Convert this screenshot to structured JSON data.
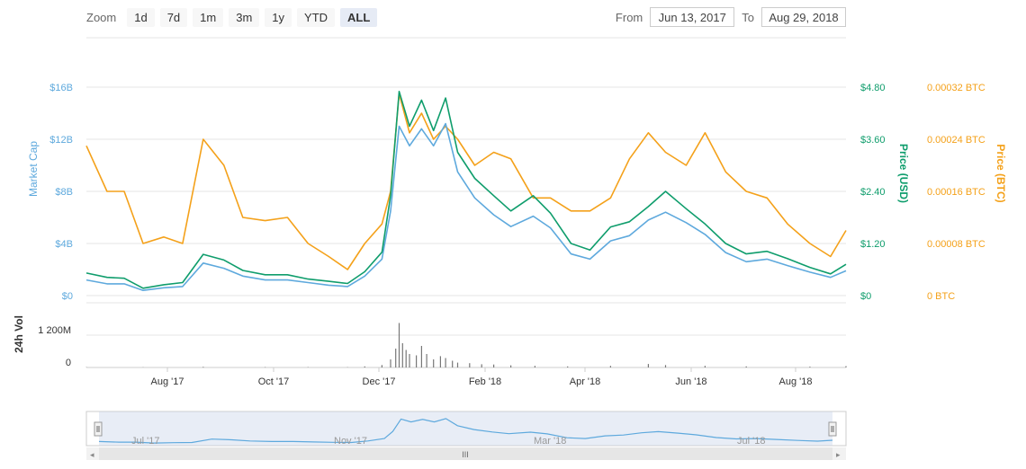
{
  "toolbar": {
    "zoom_label": "Zoom",
    "buttons": [
      "1d",
      "7d",
      "1m",
      "3m",
      "1y",
      "YTD",
      "ALL"
    ],
    "active": "ALL",
    "from_label": "From",
    "from_value": "Jun 13, 2017",
    "to_label": "To",
    "to_value": "Aug 29, 2018"
  },
  "colors": {
    "market_cap": "#5ea9dd",
    "price_usd": "#0f9d6c",
    "price_btc": "#f4a11a",
    "volume": "#777777",
    "grid": "#e6e6e6",
    "navigator_fill": "#ccd6eb"
  },
  "chart_data": {
    "type": "line",
    "x_axis": {
      "start": "2017-06-13",
      "end": "2018-08-29",
      "ticks": [
        "Aug '17",
        "Oct '17",
        "Dec '17",
        "Feb '18",
        "Apr '18",
        "Jun '18",
        "Aug '18"
      ]
    },
    "y_axes": [
      {
        "label": "Market Cap",
        "ticks": [
          "$0",
          "$4B",
          "$8B",
          "$12B",
          "$16B"
        ],
        "range": [
          0,
          16
        ]
      },
      {
        "label": "Price (USD)",
        "ticks": [
          "$0",
          "$1.20",
          "$2.40",
          "$3.60",
          "$4.80"
        ],
        "range": [
          0,
          4.8
        ]
      },
      {
        "label": "Price (BTC)",
        "ticks": [
          "0 BTC",
          "0.00008 BTC",
          "0.00016 BTC",
          "0.00024 BTC",
          "0.00032 BTC"
        ],
        "range": [
          0,
          0.00032
        ]
      }
    ],
    "series": [
      {
        "name": "Market Cap",
        "unit": "B USD",
        "points": [
          [
            "2017-06-13",
            1.2
          ],
          [
            "2017-06-25",
            0.9
          ],
          [
            "2017-07-05",
            0.9
          ],
          [
            "2017-07-16",
            0.4
          ],
          [
            "2017-07-28",
            0.6
          ],
          [
            "2017-08-08",
            0.7
          ],
          [
            "2017-08-20",
            2.5
          ],
          [
            "2017-09-01",
            2.1
          ],
          [
            "2017-09-12",
            1.5
          ],
          [
            "2017-09-25",
            1.2
          ],
          [
            "2017-10-08",
            1.2
          ],
          [
            "2017-10-20",
            1.0
          ],
          [
            "2017-11-01",
            0.8
          ],
          [
            "2017-11-12",
            0.7
          ],
          [
            "2017-11-22",
            1.5
          ],
          [
            "2017-12-02",
            2.8
          ],
          [
            "2017-12-07",
            6.5
          ],
          [
            "2017-12-12",
            13.0
          ],
          [
            "2017-12-18",
            11.5
          ],
          [
            "2017-12-25",
            12.8
          ],
          [
            "2018-01-01",
            11.5
          ],
          [
            "2018-01-08",
            13.2
          ],
          [
            "2018-01-15",
            9.5
          ],
          [
            "2018-01-25",
            7.5
          ],
          [
            "2018-02-05",
            6.2
          ],
          [
            "2018-02-15",
            5.3
          ],
          [
            "2018-02-28",
            6.1
          ],
          [
            "2018-03-10",
            5.2
          ],
          [
            "2018-03-22",
            3.2
          ],
          [
            "2018-04-02",
            2.8
          ],
          [
            "2018-04-14",
            4.2
          ],
          [
            "2018-04-25",
            4.6
          ],
          [
            "2018-05-06",
            5.8
          ],
          [
            "2018-05-16",
            6.4
          ],
          [
            "2018-05-28",
            5.6
          ],
          [
            "2018-06-08",
            4.7
          ],
          [
            "2018-06-20",
            3.3
          ],
          [
            "2018-07-02",
            2.6
          ],
          [
            "2018-07-14",
            2.8
          ],
          [
            "2018-07-26",
            2.3
          ],
          [
            "2018-08-08",
            1.8
          ],
          [
            "2018-08-20",
            1.4
          ],
          [
            "2018-08-29",
            1.9
          ]
        ]
      },
      {
        "name": "Price (USD)",
        "unit": "USD",
        "points": [
          [
            "2017-06-13",
            0.52
          ],
          [
            "2017-06-25",
            0.42
          ],
          [
            "2017-07-05",
            0.4
          ],
          [
            "2017-07-16",
            0.17
          ],
          [
            "2017-07-28",
            0.25
          ],
          [
            "2017-08-08",
            0.3
          ],
          [
            "2017-08-20",
            0.95
          ],
          [
            "2017-09-01",
            0.82
          ],
          [
            "2017-09-12",
            0.58
          ],
          [
            "2017-09-25",
            0.48
          ],
          [
            "2017-10-08",
            0.48
          ],
          [
            "2017-10-20",
            0.38
          ],
          [
            "2017-11-01",
            0.33
          ],
          [
            "2017-11-12",
            0.28
          ],
          [
            "2017-11-22",
            0.55
          ],
          [
            "2017-12-02",
            1.0
          ],
          [
            "2017-12-07",
            2.3
          ],
          [
            "2017-12-12",
            4.7
          ],
          [
            "2017-12-18",
            3.9
          ],
          [
            "2017-12-25",
            4.5
          ],
          [
            "2018-01-01",
            3.8
          ],
          [
            "2018-01-08",
            4.55
          ],
          [
            "2018-01-15",
            3.3
          ],
          [
            "2018-01-25",
            2.7
          ],
          [
            "2018-02-05",
            2.3
          ],
          [
            "2018-02-15",
            1.95
          ],
          [
            "2018-02-28",
            2.3
          ],
          [
            "2018-03-10",
            1.9
          ],
          [
            "2018-03-22",
            1.2
          ],
          [
            "2018-04-02",
            1.05
          ],
          [
            "2018-04-14",
            1.58
          ],
          [
            "2018-04-25",
            1.7
          ],
          [
            "2018-05-06",
            2.05
          ],
          [
            "2018-05-16",
            2.4
          ],
          [
            "2018-05-28",
            2.0
          ],
          [
            "2018-06-08",
            1.65
          ],
          [
            "2018-06-20",
            1.2
          ],
          [
            "2018-07-02",
            0.96
          ],
          [
            "2018-07-14",
            1.02
          ],
          [
            "2018-07-26",
            0.85
          ],
          [
            "2018-08-08",
            0.65
          ],
          [
            "2018-08-20",
            0.5
          ],
          [
            "2018-08-29",
            0.72
          ]
        ]
      },
      {
        "name": "Price (BTC)",
        "unit": "BTC",
        "points": [
          [
            "2017-06-13",
            0.00023
          ],
          [
            "2017-06-25",
            0.00016
          ],
          [
            "2017-07-05",
            0.00016
          ],
          [
            "2017-07-16",
            8e-05
          ],
          [
            "2017-07-28",
            9e-05
          ],
          [
            "2017-08-08",
            8e-05
          ],
          [
            "2017-08-20",
            0.00024
          ],
          [
            "2017-09-01",
            0.0002
          ],
          [
            "2017-09-12",
            0.00012
          ],
          [
            "2017-09-25",
            0.000115
          ],
          [
            "2017-10-08",
            0.00012
          ],
          [
            "2017-10-20",
            8e-05
          ],
          [
            "2017-11-01",
            6e-05
          ],
          [
            "2017-11-12",
            4e-05
          ],
          [
            "2017-11-22",
            8e-05
          ],
          [
            "2017-12-02",
            0.00011
          ],
          [
            "2017-12-07",
            0.00016
          ],
          [
            "2017-12-12",
            0.00031
          ],
          [
            "2017-12-18",
            0.00025
          ],
          [
            "2017-12-25",
            0.00028
          ],
          [
            "2018-01-01",
            0.00024
          ],
          [
            "2018-01-08",
            0.00026
          ],
          [
            "2018-01-15",
            0.00024
          ],
          [
            "2018-01-25",
            0.0002
          ],
          [
            "2018-02-05",
            0.00022
          ],
          [
            "2018-02-15",
            0.00021
          ],
          [
            "2018-02-28",
            0.00015
          ],
          [
            "2018-03-10",
            0.00015
          ],
          [
            "2018-03-22",
            0.00013
          ],
          [
            "2018-04-02",
            0.00013
          ],
          [
            "2018-04-14",
            0.00015
          ],
          [
            "2018-04-25",
            0.00021
          ],
          [
            "2018-05-06",
            0.00025
          ],
          [
            "2018-05-16",
            0.00022
          ],
          [
            "2018-05-28",
            0.0002
          ],
          [
            "2018-06-08",
            0.00025
          ],
          [
            "2018-06-20",
            0.00019
          ],
          [
            "2018-07-02",
            0.00016
          ],
          [
            "2018-07-14",
            0.00015
          ],
          [
            "2018-07-26",
            0.00011
          ],
          [
            "2018-08-08",
            8e-05
          ],
          [
            "2018-08-20",
            6e-05
          ],
          [
            "2018-08-29",
            0.0001
          ]
        ]
      }
    ],
    "volume": {
      "label": "24h Vol",
      "ticks": [
        "0",
        "1 200M"
      ],
      "unit": "M USD",
      "points": [
        [
          "2017-06-13",
          10
        ],
        [
          "2017-07-16",
          8
        ],
        [
          "2017-08-20",
          25
        ],
        [
          "2017-09-25",
          15
        ],
        [
          "2017-10-20",
          12
        ],
        [
          "2017-11-12",
          10
        ],
        [
          "2017-11-22",
          40
        ],
        [
          "2017-12-02",
          90
        ],
        [
          "2017-12-07",
          300
        ],
        [
          "2017-12-10",
          700
        ],
        [
          "2017-12-12",
          1650
        ],
        [
          "2017-12-14",
          900
        ],
        [
          "2017-12-16",
          650
        ],
        [
          "2017-12-18",
          500
        ],
        [
          "2017-12-22",
          450
        ],
        [
          "2017-12-25",
          800
        ],
        [
          "2017-12-28",
          500
        ],
        [
          "2018-01-01",
          300
        ],
        [
          "2018-01-05",
          420
        ],
        [
          "2018-01-08",
          350
        ],
        [
          "2018-01-12",
          250
        ],
        [
          "2018-01-15",
          180
        ],
        [
          "2018-01-22",
          160
        ],
        [
          "2018-01-29",
          120
        ],
        [
          "2018-02-05",
          110
        ],
        [
          "2018-02-15",
          80
        ],
        [
          "2018-03-01",
          60
        ],
        [
          "2018-03-20",
          40
        ],
        [
          "2018-04-14",
          60
        ],
        [
          "2018-05-06",
          130
        ],
        [
          "2018-05-16",
          90
        ],
        [
          "2018-06-08",
          60
        ],
        [
          "2018-07-02",
          40
        ],
        [
          "2018-08-08",
          30
        ],
        [
          "2018-08-29",
          50
        ]
      ]
    },
    "navigator": {
      "ticks": [
        "Jul '17",
        "Nov '17",
        "Mar '18",
        "Jul '18"
      ]
    }
  }
}
